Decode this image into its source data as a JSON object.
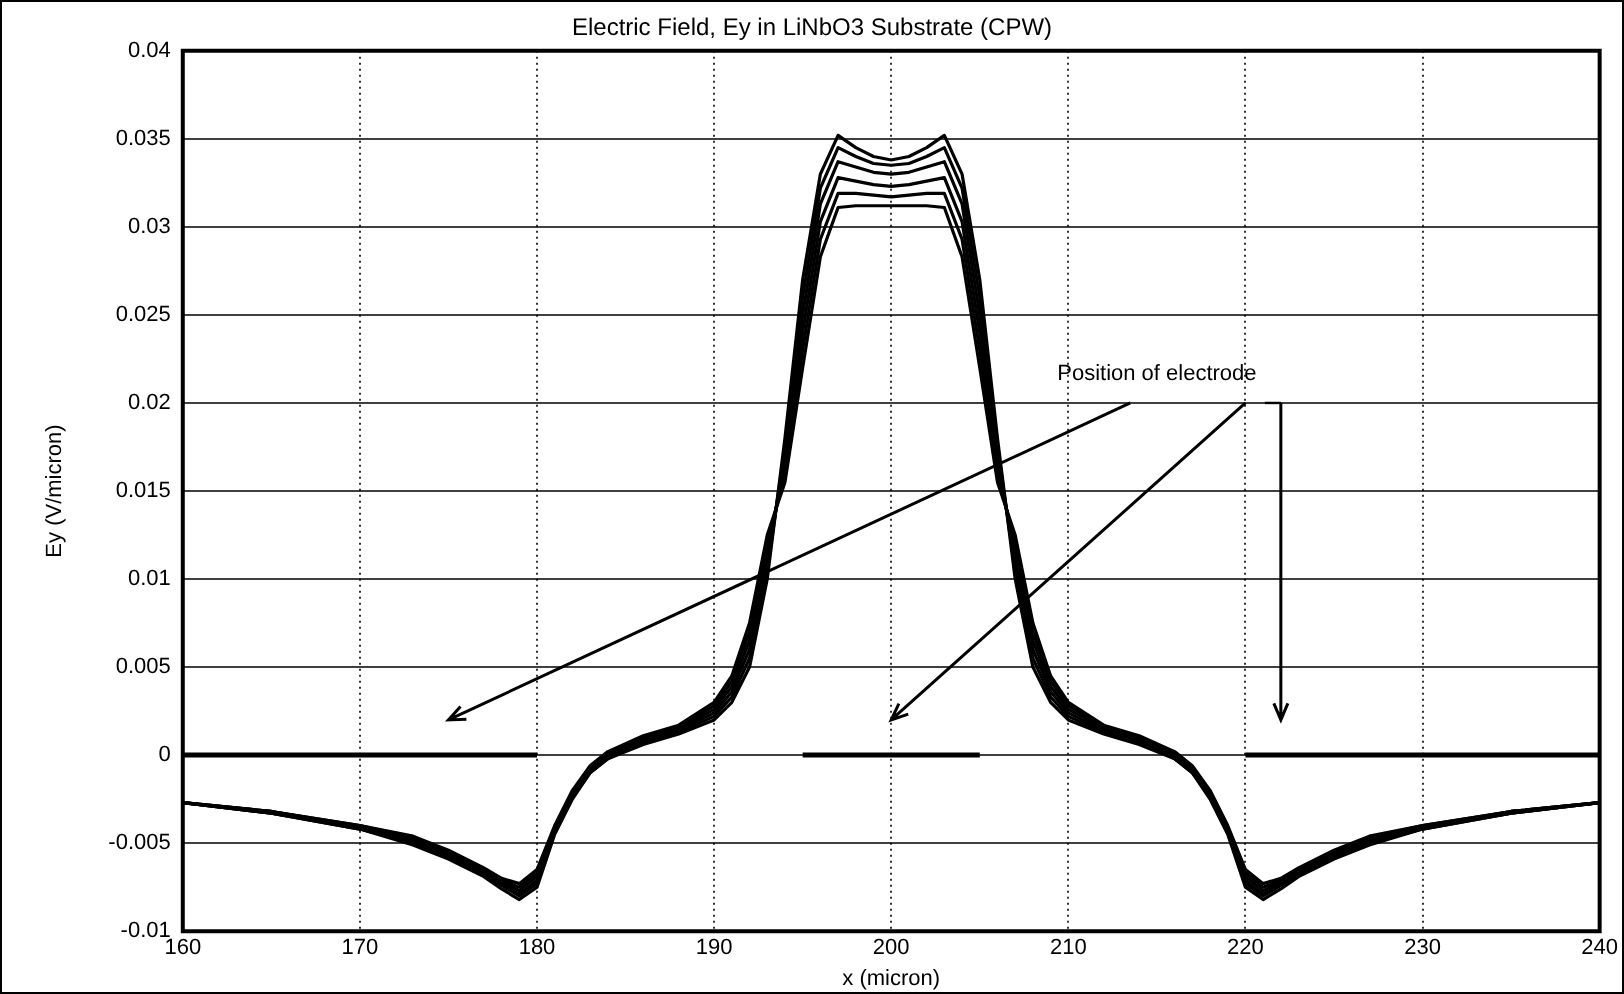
{
  "chart_data": {
    "type": "line",
    "title": "Electric Field, Ey in LiNbO3 Substrate (CPW)",
    "xlabel": "x (micron)",
    "ylabel": "Ey (V/micron)",
    "x": [
      160,
      165,
      170,
      173,
      175,
      177,
      178,
      179,
      180,
      181,
      182,
      183,
      184,
      186,
      188,
      190,
      191,
      192,
      193,
      194,
      195,
      196,
      197,
      198,
      199,
      200,
      201,
      202,
      203,
      204,
      205,
      206,
      207,
      208,
      209,
      210,
      212,
      214,
      216,
      217,
      218,
      219,
      220,
      221,
      222,
      223,
      225,
      227,
      230,
      235,
      240
    ],
    "series": [
      {
        "color": "#000000",
        "values": [
          -0.0027,
          -0.0033,
          -0.0042,
          -0.0051,
          -0.0059,
          -0.0069,
          -0.0076,
          -0.0082,
          -0.0075,
          -0.0045,
          -0.0025,
          -0.001,
          -0.0002,
          0.0006,
          0.0012,
          0.002,
          0.003,
          0.005,
          0.01,
          0.018,
          0.027,
          0.033,
          0.0352,
          0.0345,
          0.034,
          0.0338,
          0.034,
          0.0345,
          0.0352,
          0.033,
          0.027,
          0.018,
          0.01,
          0.005,
          0.003,
          0.002,
          0.0012,
          0.0006,
          -0.0002,
          -0.001,
          -0.0025,
          -0.0045,
          -0.0075,
          -0.0082,
          -0.0076,
          -0.0069,
          -0.0059,
          -0.0051,
          -0.0042,
          -0.0033,
          -0.0027
        ]
      },
      {
        "color": "#000000",
        "values": [
          -0.0027,
          -0.0033,
          -0.0042,
          -0.005,
          -0.0058,
          -0.0068,
          -0.0074,
          -0.008,
          -0.0073,
          -0.0044,
          -0.0024,
          -0.001,
          -0.0002,
          0.0007,
          0.0013,
          0.0022,
          0.0033,
          0.0055,
          0.0105,
          0.0175,
          0.026,
          0.0322,
          0.0345,
          0.034,
          0.0336,
          0.0335,
          0.0336,
          0.034,
          0.0345,
          0.0322,
          0.026,
          0.0175,
          0.0105,
          0.0055,
          0.0033,
          0.0022,
          0.0013,
          0.0007,
          -0.0002,
          -0.001,
          -0.0024,
          -0.0044,
          -0.0073,
          -0.008,
          -0.0074,
          -0.0068,
          -0.0058,
          -0.005,
          -0.0042,
          -0.0033,
          -0.0027
        ]
      },
      {
        "color": "#000000",
        "values": [
          -0.0027,
          -0.0033,
          -0.0041,
          -0.0049,
          -0.0057,
          -0.0067,
          -0.0073,
          -0.0079,
          -0.0071,
          -0.0043,
          -0.0023,
          -0.0009,
          -0.0001,
          0.0008,
          0.0014,
          0.0024,
          0.0036,
          0.006,
          0.011,
          0.017,
          0.025,
          0.0313,
          0.0337,
          0.0334,
          0.0331,
          0.033,
          0.0331,
          0.0334,
          0.0337,
          0.0313,
          0.025,
          0.017,
          0.011,
          0.006,
          0.0036,
          0.0024,
          0.0014,
          0.0008,
          -0.0001,
          -0.0009,
          -0.0023,
          -0.0043,
          -0.0071,
          -0.0079,
          -0.0073,
          -0.0067,
          -0.0057,
          -0.0049,
          -0.0041,
          -0.0033,
          -0.0027
        ]
      },
      {
        "color": "#000000",
        "values": [
          -0.0027,
          -0.0032,
          -0.0041,
          -0.0048,
          -0.0056,
          -0.0066,
          -0.0072,
          -0.0077,
          -0.0069,
          -0.0042,
          -0.0022,
          -0.0008,
          0,
          0.0009,
          0.0015,
          0.0026,
          0.0039,
          0.0065,
          0.0115,
          0.0165,
          0.024,
          0.0303,
          0.0328,
          0.0326,
          0.0324,
          0.0323,
          0.0324,
          0.0326,
          0.0328,
          0.0303,
          0.024,
          0.0165,
          0.0115,
          0.0065,
          0.0039,
          0.0026,
          0.0015,
          0.0009,
          0,
          -0.0008,
          -0.0022,
          -0.0042,
          -0.0069,
          -0.0077,
          -0.0072,
          -0.0066,
          -0.0056,
          -0.0048,
          -0.0041,
          -0.0032,
          -0.0027
        ]
      },
      {
        "color": "#000000",
        "values": [
          -0.0027,
          -0.0032,
          -0.004,
          -0.0047,
          -0.0055,
          -0.0065,
          -0.0071,
          -0.0075,
          -0.0067,
          -0.0041,
          -0.0021,
          -0.0007,
          0.0001,
          0.001,
          0.0016,
          0.0028,
          0.0042,
          0.007,
          0.012,
          0.016,
          0.023,
          0.0293,
          0.0319,
          0.0319,
          0.0318,
          0.0317,
          0.0318,
          0.0319,
          0.0319,
          0.0293,
          0.023,
          0.016,
          0.012,
          0.007,
          0.0042,
          0.0028,
          0.0016,
          0.001,
          0.0001,
          -0.0007,
          -0.0021,
          -0.0041,
          -0.0067,
          -0.0075,
          -0.0071,
          -0.0065,
          -0.0055,
          -0.0047,
          -0.004,
          -0.0032,
          -0.0027
        ]
      },
      {
        "color": "#000000",
        "values": [
          -0.0027,
          -0.0032,
          -0.004,
          -0.0046,
          -0.0054,
          -0.0064,
          -0.007,
          -0.0073,
          -0.0065,
          -0.004,
          -0.002,
          -0.0006,
          0.0002,
          0.0011,
          0.0017,
          0.003,
          0.0045,
          0.0075,
          0.0125,
          0.0155,
          0.022,
          0.0283,
          0.0311,
          0.0312,
          0.0312,
          0.0312,
          0.0312,
          0.0312,
          0.0311,
          0.0283,
          0.022,
          0.0155,
          0.0125,
          0.0075,
          0.0045,
          0.003,
          0.0017,
          0.0011,
          0.0002,
          -0.0006,
          -0.002,
          -0.004,
          -0.0065,
          -0.0073,
          -0.007,
          -0.0064,
          -0.0054,
          -0.0046,
          -0.004,
          -0.0032,
          -0.0027
        ]
      },
      {
        "color": "#000000",
        "x": [
          160,
          180
        ],
        "values": [
          0,
          0
        ]
      },
      {
        "color": "#000000",
        "x": [
          195,
          205
        ],
        "values": [
          0,
          0
        ]
      },
      {
        "color": "#000000",
        "x": [
          220,
          240
        ],
        "values": [
          0,
          0
        ]
      }
    ],
    "xlim": [
      160,
      240
    ],
    "xticks": [
      160,
      170,
      180,
      190,
      200,
      210,
      220,
      230,
      240
    ],
    "ylim": [
      -0.01,
      0.04
    ],
    "yticks": [
      -0.01,
      -0.005,
      0,
      0.005,
      0.01,
      0.015,
      0.02,
      0.025,
      0.03,
      0.035,
      0.04
    ],
    "grid": true,
    "legend": false,
    "marker": "none",
    "line_style": "solid",
    "annotations": [
      "Position of electrode"
    ]
  }
}
